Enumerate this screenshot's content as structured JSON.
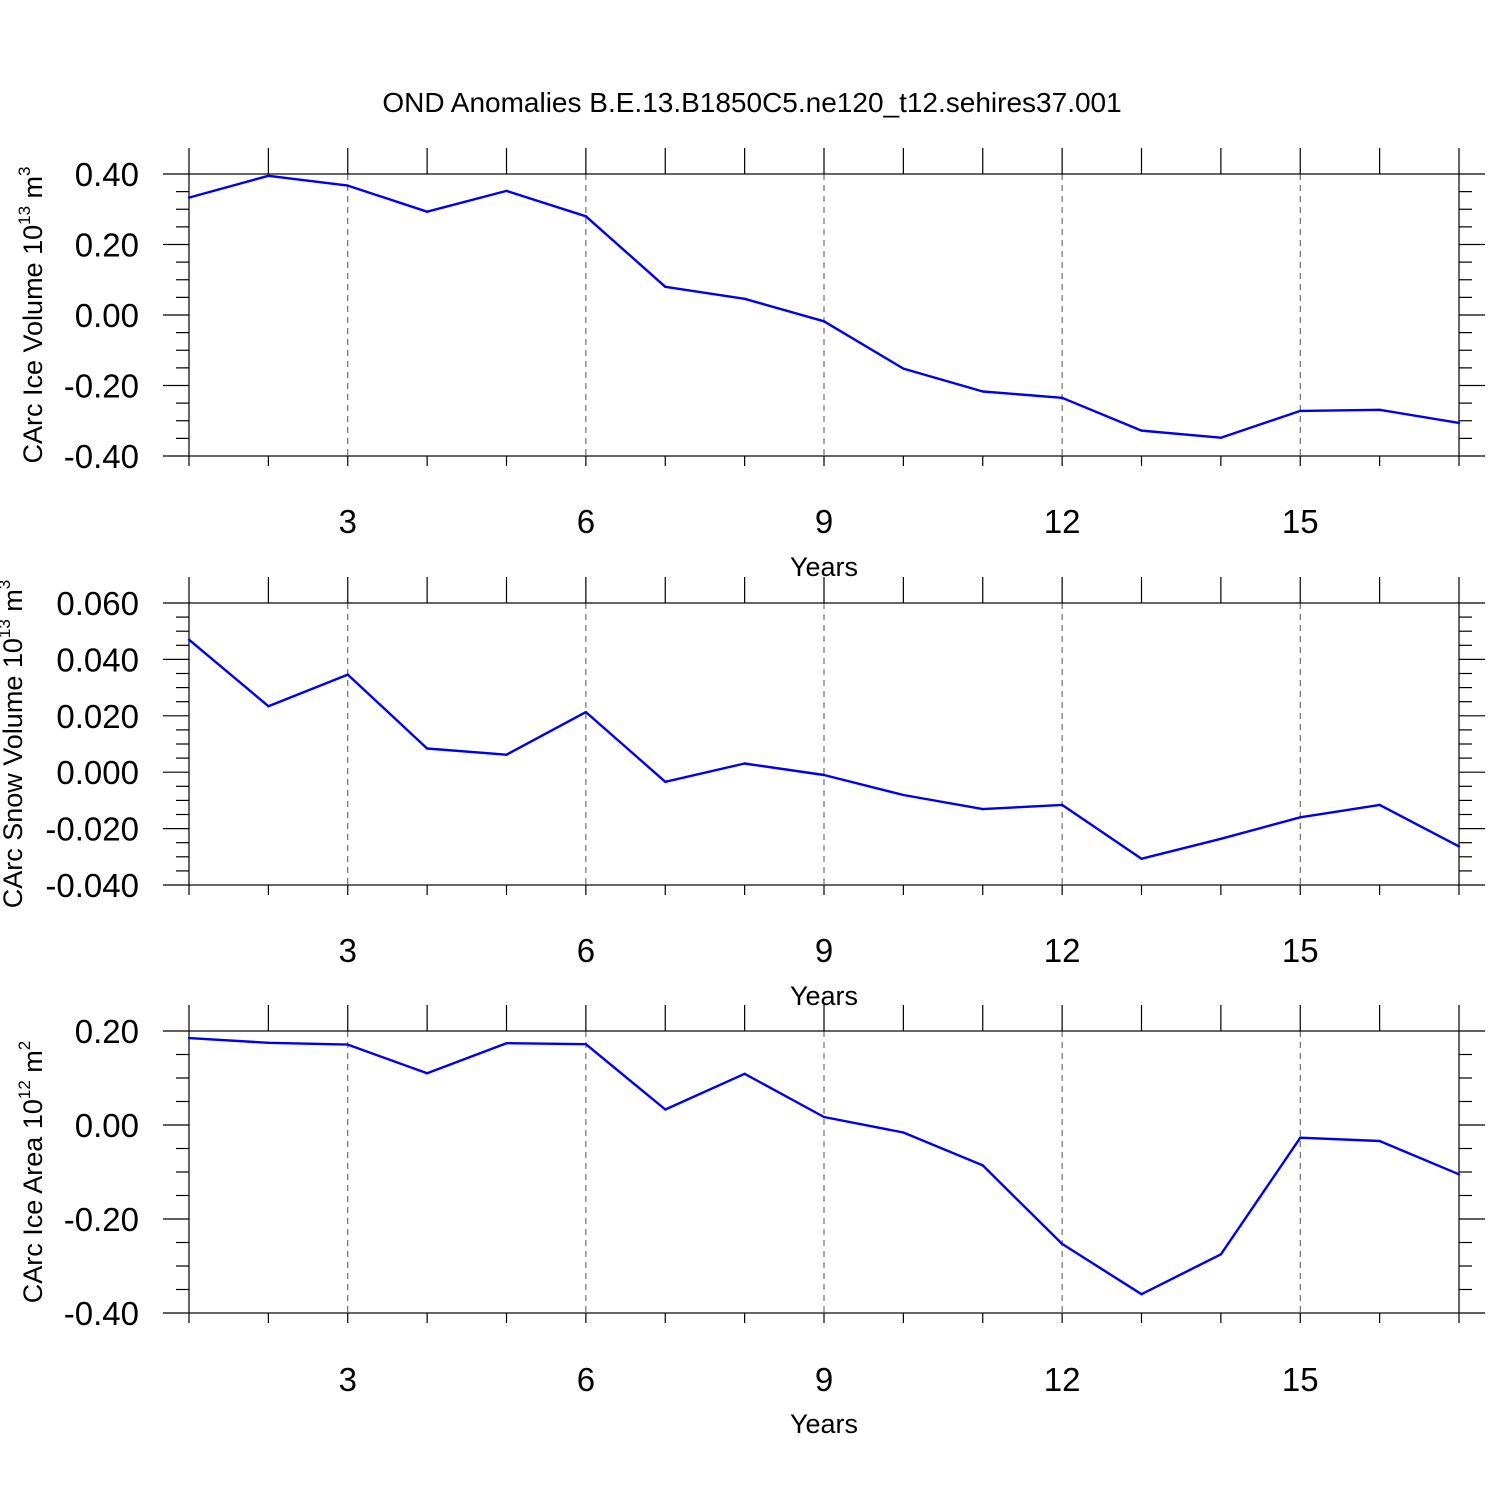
{
  "title": "OND Anomalies B.E.13.B1850C5.ne120_t12.sehires37.001",
  "chart_data": [
    {
      "type": "line",
      "ylabel": "CArc Ice Volume 10",
      "ylabel_exponent": "13",
      "ylabel_unit": " m",
      "ylabel_unit_exponent": "3",
      "xlabel": "Years",
      "xlim": [
        1,
        17
      ],
      "ylim": [
        -0.4,
        0.4
      ],
      "x_ticks": [
        3,
        6,
        9,
        12,
        15
      ],
      "x_tick_labels": [
        "3",
        "6",
        "9",
        "12",
        "15"
      ],
      "y_ticks": [
        0.4,
        0.2,
        0.0,
        -0.2,
        -0.4
      ],
      "y_tick_labels": [
        "0.40",
        "0.20",
        "0.00",
        "-0.20",
        "-0.40"
      ],
      "grid": "vertical dashed at labeled x ticks",
      "color": "#0000ee",
      "x": [
        1,
        2,
        3,
        4,
        5,
        6,
        7,
        8,
        9,
        10,
        11,
        12,
        13,
        14,
        15,
        16,
        17
      ],
      "values": [
        0.333,
        0.395,
        0.367,
        0.293,
        0.352,
        0.28,
        0.08,
        0.046,
        -0.018,
        -0.152,
        -0.217,
        -0.235,
        -0.328,
        -0.348,
        -0.272,
        -0.269,
        -0.306
      ]
    },
    {
      "type": "line",
      "ylabel": "CArc Snow Volume 10",
      "ylabel_exponent": "13",
      "ylabel_unit": " m",
      "ylabel_unit_exponent": "3",
      "xlabel": "Years",
      "xlim": [
        1,
        17
      ],
      "ylim": [
        -0.04,
        0.06
      ],
      "x_ticks": [
        3,
        6,
        9,
        12,
        15
      ],
      "x_tick_labels": [
        "3",
        "6",
        "9",
        "12",
        "15"
      ],
      "y_ticks": [
        0.06,
        0.04,
        0.02,
        0.0,
        -0.02,
        -0.04
      ],
      "y_tick_labels": [
        "0.060",
        "0.040",
        "0.020",
        "0.000",
        "-0.020",
        "-0.040"
      ],
      "grid": "vertical dashed at labeled x ticks",
      "color": "#0000ee",
      "x": [
        1,
        2,
        3,
        4,
        5,
        6,
        7,
        8,
        9,
        10,
        11,
        12,
        13,
        14,
        15,
        16,
        17
      ],
      "values": [
        0.047,
        0.0234,
        0.0346,
        0.0084,
        0.0062,
        0.0213,
        -0.0034,
        0.0031,
        -0.001,
        -0.0081,
        -0.0131,
        -0.0116,
        -0.0307,
        -0.0236,
        -0.016,
        -0.0116,
        -0.0263
      ]
    },
    {
      "type": "line",
      "ylabel": "CArc Ice Area 10",
      "ylabel_exponent": "12",
      "ylabel_unit": " m",
      "ylabel_unit_exponent": "2",
      "xlabel": "Years",
      "xlim": [
        1,
        17
      ],
      "ylim": [
        -0.4,
        0.2
      ],
      "x_ticks": [
        3,
        6,
        9,
        12,
        15
      ],
      "x_tick_labels": [
        "3",
        "6",
        "9",
        "12",
        "15"
      ],
      "y_ticks": [
        0.2,
        0.0,
        -0.2,
        -0.4
      ],
      "y_tick_labels": [
        "0.20",
        "0.00",
        "-0.20",
        "-0.40"
      ],
      "grid": "vertical dashed at labeled x ticks",
      "color": "#0000ee",
      "x": [
        1,
        2,
        3,
        4,
        5,
        6,
        7,
        8,
        9,
        10,
        11,
        12,
        13,
        14,
        15,
        16,
        17
      ],
      "values": [
        0.185,
        0.175,
        0.171,
        0.11,
        0.174,
        0.172,
        0.033,
        0.109,
        0.017,
        -0.016,
        -0.086,
        -0.253,
        -0.36,
        -0.275,
        -0.027,
        -0.034,
        -0.105
      ]
    }
  ]
}
